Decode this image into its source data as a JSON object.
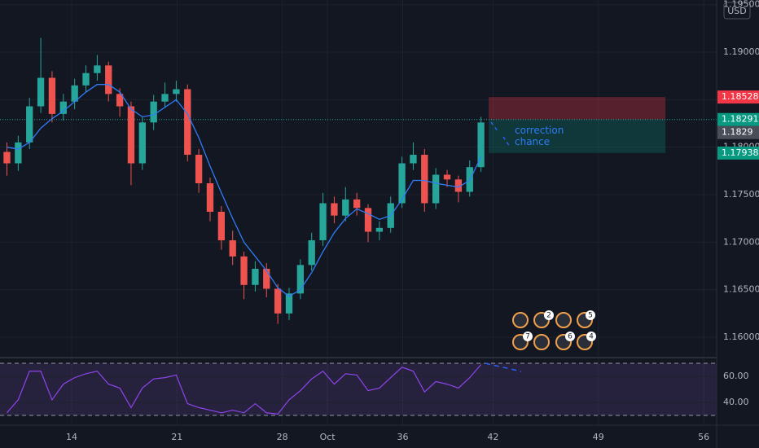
{
  "chart_data": {
    "type": "candlestick",
    "currency": "USD",
    "x": [
      9.7,
      10.45,
      11.2,
      11.95,
      12.7,
      13.45,
      14.2,
      14.95,
      15.7,
      16.45,
      17.2,
      17.95,
      18.7,
      19.45,
      20.2,
      20.95,
      21.7,
      22.45,
      23.2,
      23.95,
      24.7,
      25.45,
      26.2,
      26.95,
      27.7,
      28.45,
      29.2,
      29.95,
      30.7,
      31.45,
      32.2,
      32.95,
      33.7,
      34.45,
      35.2,
      35.95,
      36.7,
      37.45,
      38.2,
      38.95,
      39.7,
      40.45,
      41.2
    ],
    "ohlc": [
      [
        1.1795,
        1.1805,
        1.177,
        1.1783
      ],
      [
        1.1783,
        1.1812,
        1.1775,
        1.1805
      ],
      [
        1.1805,
        1.1852,
        1.1798,
        1.1843
      ],
      [
        1.1843,
        1.1915,
        1.1836,
        1.1873
      ],
      [
        1.1873,
        1.188,
        1.1826,
        1.1835
      ],
      [
        1.1835,
        1.1856,
        1.1828,
        1.1848
      ],
      [
        1.1848,
        1.1872,
        1.184,
        1.1865
      ],
      [
        1.1865,
        1.1886,
        1.1858,
        1.1878
      ],
      [
        1.1878,
        1.1897,
        1.187,
        1.1886
      ],
      [
        1.1886,
        1.189,
        1.1848,
        1.1856
      ],
      [
        1.1856,
        1.1862,
        1.1832,
        1.1843
      ],
      [
        1.1843,
        1.1848,
        1.176,
        1.1783
      ],
      [
        1.1783,
        1.1832,
        1.1776,
        1.1826
      ],
      [
        1.1826,
        1.1855,
        1.1818,
        1.1848
      ],
      [
        1.1848,
        1.1868,
        1.1842,
        1.1856
      ],
      [
        1.1856,
        1.187,
        1.1848,
        1.1861
      ],
      [
        1.1861,
        1.1866,
        1.1785,
        1.1792
      ],
      [
        1.1792,
        1.1798,
        1.1752,
        1.1762
      ],
      [
        1.1762,
        1.1768,
        1.1722,
        1.1732
      ],
      [
        1.1732,
        1.1738,
        1.1692,
        1.1702
      ],
      [
        1.1702,
        1.1712,
        1.1676,
        1.1685
      ],
      [
        1.1685,
        1.169,
        1.164,
        1.1655
      ],
      [
        1.1655,
        1.168,
        1.1648,
        1.1672
      ],
      [
        1.1672,
        1.1678,
        1.1642,
        1.1651
      ],
      [
        1.1651,
        1.1656,
        1.1614,
        1.1625
      ],
      [
        1.1625,
        1.1652,
        1.1618,
        1.1646
      ],
      [
        1.1646,
        1.1682,
        1.164,
        1.1676
      ],
      [
        1.1676,
        1.171,
        1.167,
        1.1702
      ],
      [
        1.1702,
        1.1752,
        1.1696,
        1.1741
      ],
      [
        1.1741,
        1.1748,
        1.172,
        1.1728
      ],
      [
        1.1728,
        1.1758,
        1.1722,
        1.1745
      ],
      [
        1.1745,
        1.1752,
        1.1728,
        1.1736
      ],
      [
        1.1736,
        1.174,
        1.17,
        1.1711
      ],
      [
        1.1711,
        1.1722,
        1.1702,
        1.1715
      ],
      [
        1.1715,
        1.1748,
        1.171,
        1.1741
      ],
      [
        1.1741,
        1.179,
        1.1736,
        1.1783
      ],
      [
        1.1783,
        1.1805,
        1.1776,
        1.1792
      ],
      [
        1.1792,
        1.1798,
        1.1732,
        1.1741
      ],
      [
        1.1741,
        1.1778,
        1.1735,
        1.1771
      ],
      [
        1.1771,
        1.1776,
        1.1758,
        1.1766
      ],
      [
        1.1766,
        1.177,
        1.1742,
        1.1753
      ],
      [
        1.1753,
        1.1786,
        1.1748,
        1.1779
      ],
      [
        1.1779,
        1.1832,
        1.1774,
        1.1826
      ]
    ],
    "up_color": "#26a69a",
    "down_color": "#ef5350",
    "ma": {
      "color": "#2f7cf6",
      "values": [
        1.18,
        1.1798,
        1.1805,
        1.182,
        1.183,
        1.1838,
        1.1848,
        1.1858,
        1.1866,
        1.1866,
        1.1858,
        1.184,
        1.1832,
        1.1834,
        1.1842,
        1.185,
        1.1835,
        1.181,
        1.178,
        1.1752,
        1.1725,
        1.17,
        1.1685,
        1.167,
        1.1652,
        1.1643,
        1.165,
        1.1668,
        1.169,
        1.171,
        1.1725,
        1.1735,
        1.173,
        1.1724,
        1.1728,
        1.1745,
        1.1765,
        1.1765,
        1.1762,
        1.176,
        1.1758,
        1.1765,
        1.179
      ]
    },
    "xlim": [
      9.24,
      56.86
    ],
    "xticks": [
      14,
      21,
      28,
      {
        "value": 31,
        "label": "Oct"
      },
      36,
      42,
      49,
      56
    ],
    "ylim": [
      1.15794,
      1.19549
    ],
    "yticks": [
      {
        "value": 1.16,
        "label": "1.16000"
      },
      {
        "value": 1.165,
        "label": "1.16500"
      },
      {
        "value": 1.17,
        "label": "1.17000"
      },
      {
        "value": 1.175,
        "label": "1.17500"
      },
      {
        "value": 1.18,
        "label": "1.18000"
      },
      {
        "value": 1.185,
        "label": "1.18500"
      },
      {
        "value": 1.19,
        "label": "1.19000"
      },
      {
        "value": 1.195,
        "label": "1.19500"
      }
    ],
    "price_labels": [
      {
        "price": 1.18528,
        "color": "#f23645"
      },
      {
        "price": 1.18291,
        "color": "#089981"
      },
      {
        "price": 1.1829,
        "color": "#4a4e59"
      },
      {
        "price": 1.17938,
        "color": "#089981"
      }
    ],
    "zone": {
      "x": [
        41.71,
        53.46
      ],
      "stop": 1.18528,
      "entry": 1.18291,
      "target": 1.17938,
      "text": [
        "correction",
        "chance"
      ]
    },
    "rsi": {
      "color": "#8e44ec",
      "values": [
        32,
        42,
        64,
        64,
        42,
        54,
        59,
        62,
        64,
        54,
        51,
        36,
        51,
        58,
        59,
        61,
        39,
        36,
        34,
        32,
        34,
        32,
        39,
        32,
        31,
        42,
        49,
        58,
        64,
        54,
        62,
        61,
        49,
        51,
        59,
        67,
        64,
        48,
        56,
        54,
        51,
        59,
        69
      ],
      "ylim": [
        23.1,
        74.4
      ],
      "band": [
        30,
        70
      ],
      "yticks": [
        {
          "value": 60,
          "label": "60.00"
        },
        {
          "value": 40,
          "label": "40.00"
        }
      ]
    },
    "event_badges": [
      "2",
      "5",
      "7",
      "6",
      "4"
    ]
  }
}
